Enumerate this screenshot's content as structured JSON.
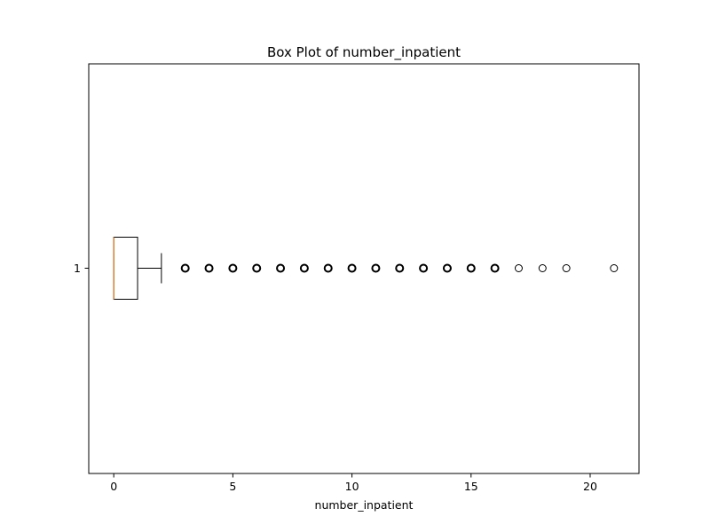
{
  "chart_data": {
    "type": "boxplot",
    "orientation": "horizontal",
    "title": "Box Plot of number_inpatient",
    "xlabel": "number_inpatient",
    "ylabel": "",
    "xlim": [
      -1.05,
      22.05
    ],
    "x_ticks": [
      0,
      5,
      10,
      15,
      20
    ],
    "y_ticks": [
      "1"
    ],
    "grid": false,
    "legend": "none",
    "series": [
      {
        "category": "1",
        "min": 0,
        "q1": 0,
        "median": 0,
        "q3": 1,
        "whisker_low": 0,
        "whisker_high": 2,
        "outliers": [
          3,
          4,
          5,
          6,
          7,
          8,
          9,
          10,
          11,
          12,
          13,
          14,
          15,
          16,
          17,
          18,
          19,
          21
        ]
      }
    ],
    "colors": {
      "box": "#000000",
      "median": "#e0843a",
      "whisker": "#000000",
      "outlier": "#000000",
      "axes": "#000000",
      "background": "#ffffff"
    }
  }
}
